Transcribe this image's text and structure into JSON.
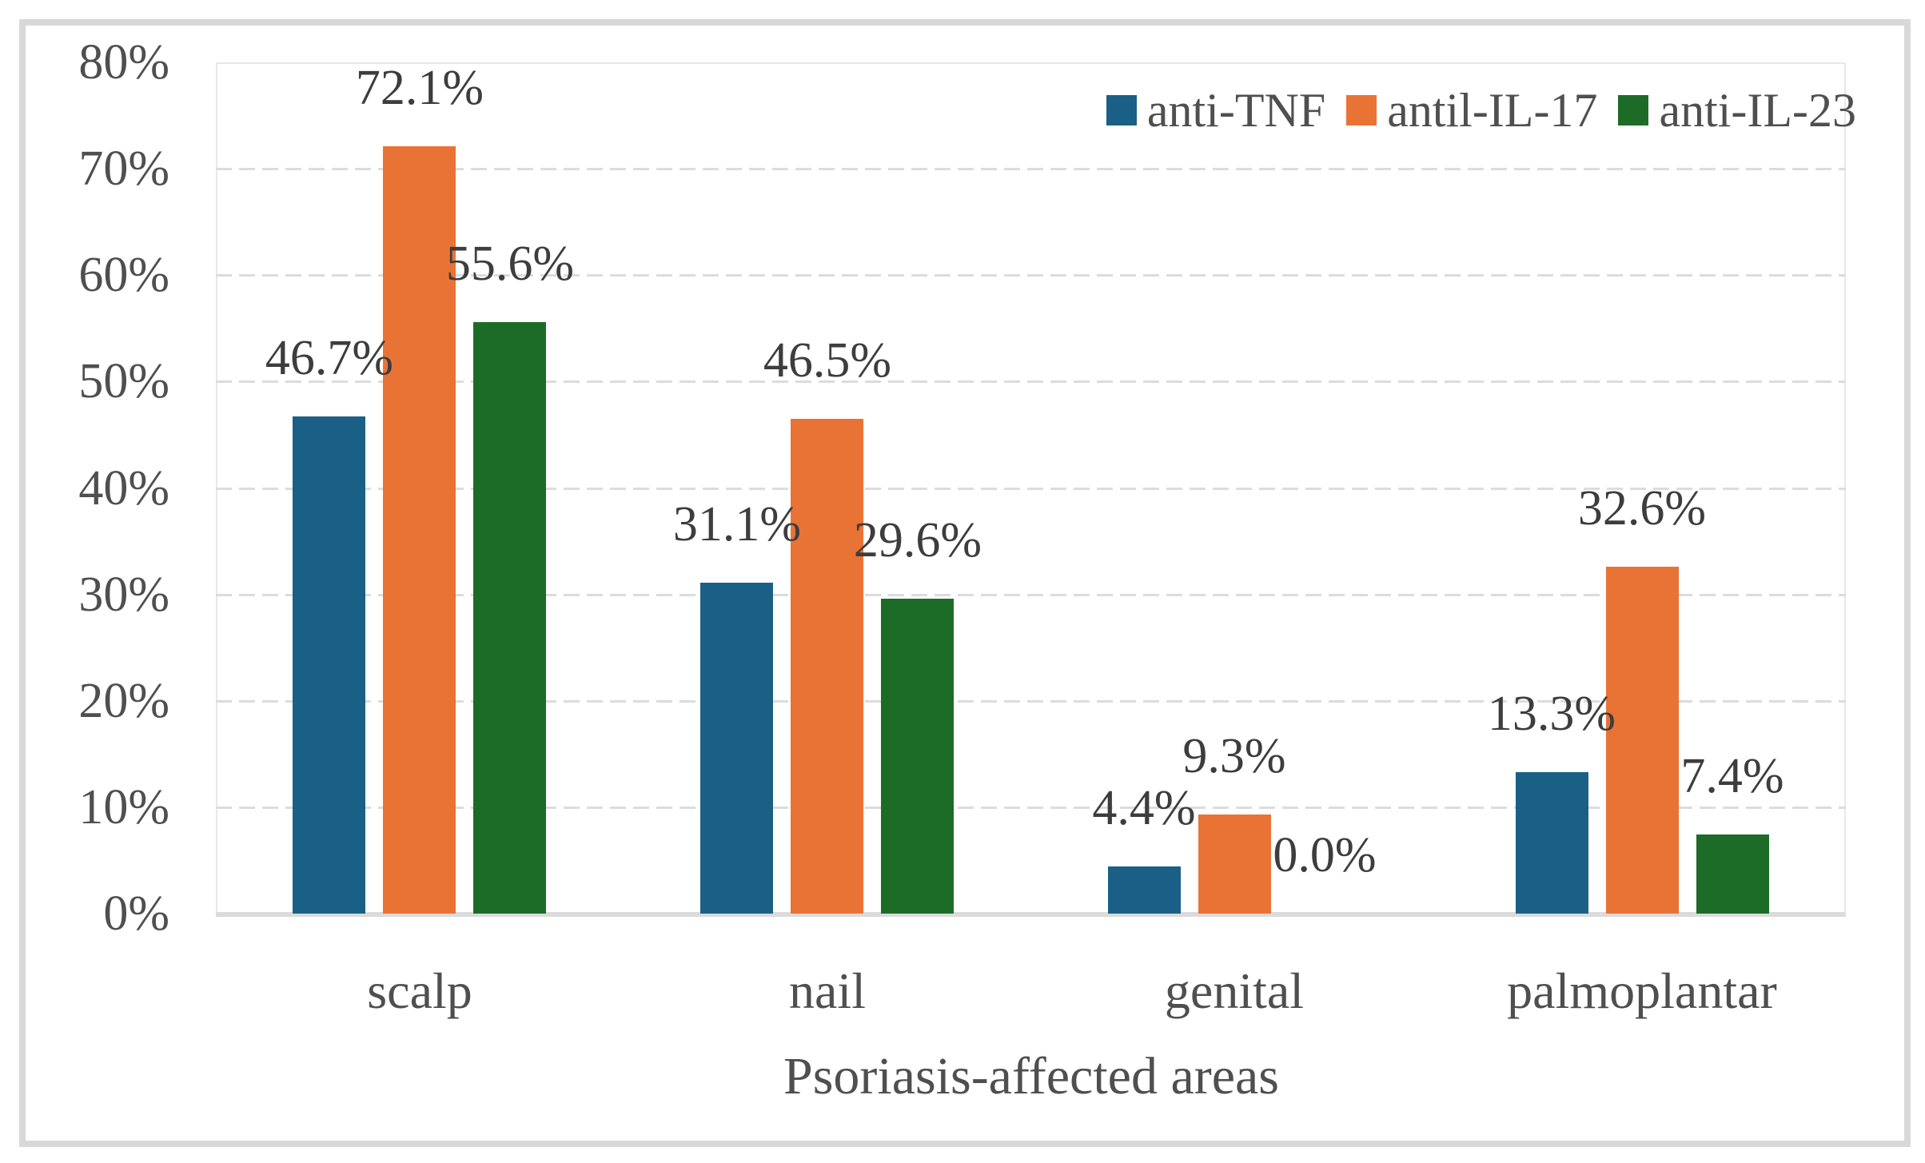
{
  "figure": {
    "background": "#ffffff",
    "frame_color": "#d8d8d8"
  },
  "colors": {
    "axis_text": "#4f4f4f",
    "data_label_text": "#3d3d3d",
    "gridline": "#dcdcdc",
    "axis_line": "#dbdbdb"
  },
  "chart_data": {
    "type": "bar",
    "title": "",
    "xlabel": "Psoriasis-affected areas",
    "ylabel": "",
    "ylim": [
      0,
      80
    ],
    "ytick_step": 10,
    "y_tick_labels": [
      "0%",
      "10%",
      "20%",
      "30%",
      "40%",
      "50%",
      "60%",
      "70%",
      "80%"
    ],
    "grid": "horizontal-dashed",
    "legend_position": "top-right-inside",
    "categories": [
      "scalp",
      "nail",
      "genital",
      "palmoplantar"
    ],
    "series": [
      {
        "name": "anti-TNF",
        "color": "#1a6086",
        "values": [
          46.7,
          31.1,
          4.4,
          13.3
        ],
        "data_labels": [
          "46.7%",
          "31.1%",
          "4.4%",
          "13.3%"
        ]
      },
      {
        "name": "antil-IL-17",
        "color": "#e97335",
        "values": [
          72.1,
          46.5,
          9.3,
          32.6
        ],
        "data_labels": [
          "72.1%",
          "46.5%",
          "9.3%",
          "32.6%"
        ]
      },
      {
        "name": "anti-IL-23",
        "color": "#1c6c27",
        "values": [
          55.6,
          29.6,
          0.0,
          7.4
        ],
        "data_labels": [
          "55.6%",
          "29.6%",
          "0.0%",
          "7.4%"
        ]
      }
    ]
  }
}
